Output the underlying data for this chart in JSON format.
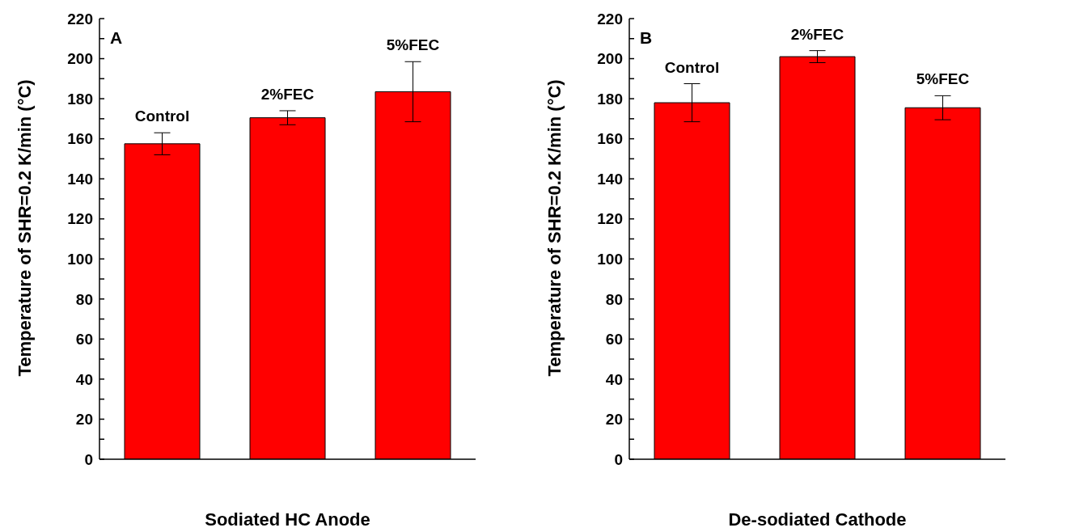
{
  "chart_data": [
    {
      "type": "bar",
      "annotations": [
        "A"
      ],
      "xlabel": "Sodiated HC Anode",
      "ylabel": "Temperature of SHR=0.2 K/min  (°C)",
      "categories": [
        "Control",
        "2%FEC",
        "5%FEC"
      ],
      "values": [
        157.5,
        170.5,
        183.5
      ],
      "errors": [
        5.5,
        3.5,
        15
      ],
      "color": "#ff0000",
      "ylim": [
        0,
        220
      ],
      "yticks": [
        0,
        {
          "value": 10,
          "label": null
        },
        20,
        {
          "value": 30,
          "label": null
        },
        40,
        {
          "value": 50,
          "label": null
        },
        60,
        {
          "value": 70,
          "label": null
        },
        80,
        {
          "value": 90,
          "label": null
        },
        100,
        {
          "value": 110,
          "label": null
        },
        120,
        {
          "value": 130,
          "label": null
        },
        140,
        {
          "value": 150,
          "label": null
        },
        160,
        {
          "value": 170,
          "label": null
        },
        180,
        {
          "value": 190,
          "label": null
        },
        200,
        {
          "value": 210,
          "label": null
        },
        220
      ],
      "tick_labels": "y",
      "grid": false,
      "legend": false
    },
    {
      "type": "bar",
      "annotations": [
        "B"
      ],
      "xlabel": "De-sodiated Cathode",
      "ylabel": "Temperature of SHR=0.2 K/min  (°C)",
      "categories": [
        "Control",
        "2%FEC",
        "5%FEC"
      ],
      "values": [
        178,
        201,
        175.5
      ],
      "errors": [
        9.5,
        3,
        6
      ],
      "color": "#ff0000",
      "ylim": [
        0,
        220
      ],
      "yticks": [
        0,
        {
          "value": 10,
          "label": null
        },
        20,
        {
          "value": 30,
          "label": null
        },
        40,
        {
          "value": 50,
          "label": null
        },
        60,
        {
          "value": 70,
          "label": null
        },
        80,
        {
          "value": 90,
          "label": null
        },
        100,
        {
          "value": 110,
          "label": null
        },
        120,
        {
          "value": 130,
          "label": null
        },
        140,
        {
          "value": 150,
          "label": null
        },
        160,
        {
          "value": 170,
          "label": null
        },
        180,
        {
          "value": 190,
          "label": null
        },
        200,
        {
          "value": 210,
          "label": null
        },
        220
      ],
      "tick_labels": "y",
      "grid": false,
      "legend": false
    }
  ]
}
